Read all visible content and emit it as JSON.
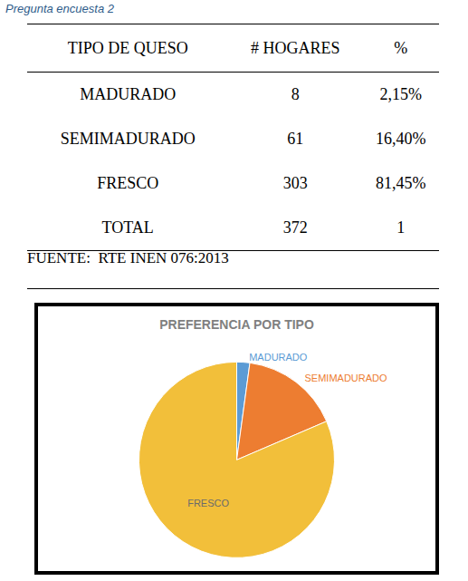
{
  "caption": "Pregunta encuesta 2",
  "table": {
    "header": [
      "TIPO DE QUESO",
      "# HOGARES",
      "%"
    ],
    "rows": [
      [
        "MADURADO",
        "8",
        "2,15%"
      ],
      [
        "SEMIMADURADO",
        "61",
        "16,40%"
      ],
      [
        "FRESCO",
        "303",
        "81,45%"
      ],
      [
        "TOTAL",
        "372",
        "1"
      ]
    ]
  },
  "source": "FUENTE:  RTE INEN 076:2013",
  "chart_data": {
    "type": "pie",
    "title": "PREFERENCIA POR TIPO",
    "categories": [
      "MADURADO",
      "SEMIMADURADO",
      "FRESCO"
    ],
    "values": [
      2.15,
      16.4,
      81.45
    ],
    "colors": [
      "#5b9bd5",
      "#ed7d31",
      "#f2bf3a"
    ]
  }
}
